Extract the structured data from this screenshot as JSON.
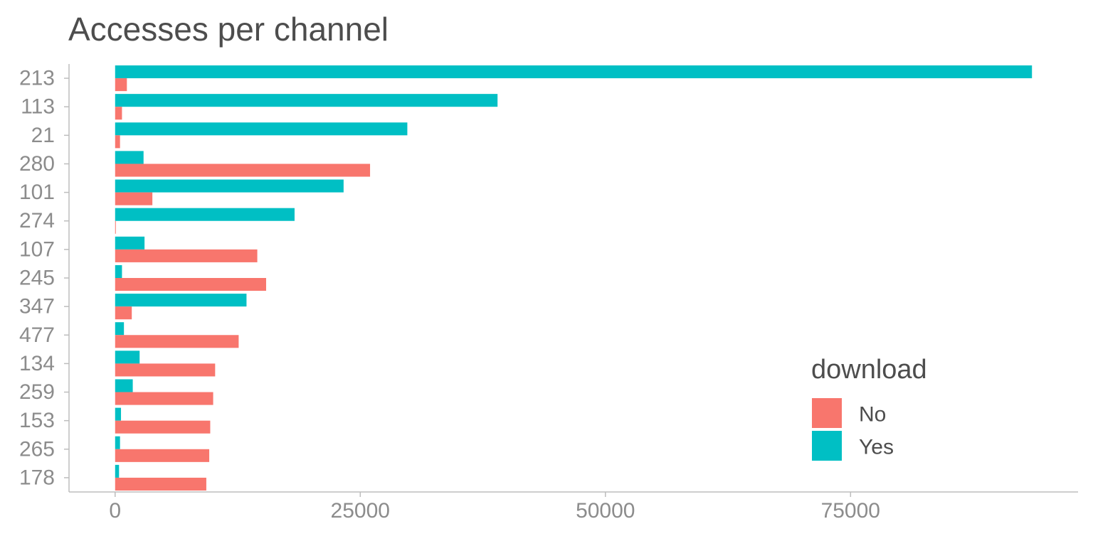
{
  "chart_data": {
    "type": "bar",
    "orientation": "horizontal",
    "title": "Accesses per channel",
    "xlabel": "",
    "ylabel": "",
    "categories": [
      "213",
      "113",
      "21",
      "280",
      "101",
      "274",
      "107",
      "245",
      "347",
      "477",
      "134",
      "259",
      "153",
      "265",
      "178"
    ],
    "series": [
      {
        "name": "No",
        "color": "#F8766D",
        "values": [
          1200,
          700,
          500,
          26000,
          3800,
          50,
          14500,
          15400,
          1700,
          12600,
          10200,
          10000,
          9700,
          9600,
          9300
        ]
      },
      {
        "name": "Yes",
        "color": "#00BFC4",
        "values": [
          93500,
          39000,
          29800,
          2900,
          23300,
          18300,
          3000,
          700,
          13400,
          900,
          2500,
          1800,
          600,
          500,
          400
        ]
      }
    ],
    "xticks": [
      0,
      25000,
      50000,
      75000
    ],
    "xtick_labels": [
      "0",
      "25000",
      "50000",
      "75000"
    ],
    "xlim": [
      -4700,
      98200
    ],
    "grid": false,
    "legend": {
      "title": "download",
      "placement": "bottom-right",
      "entries": [
        "No",
        "Yes"
      ]
    }
  }
}
